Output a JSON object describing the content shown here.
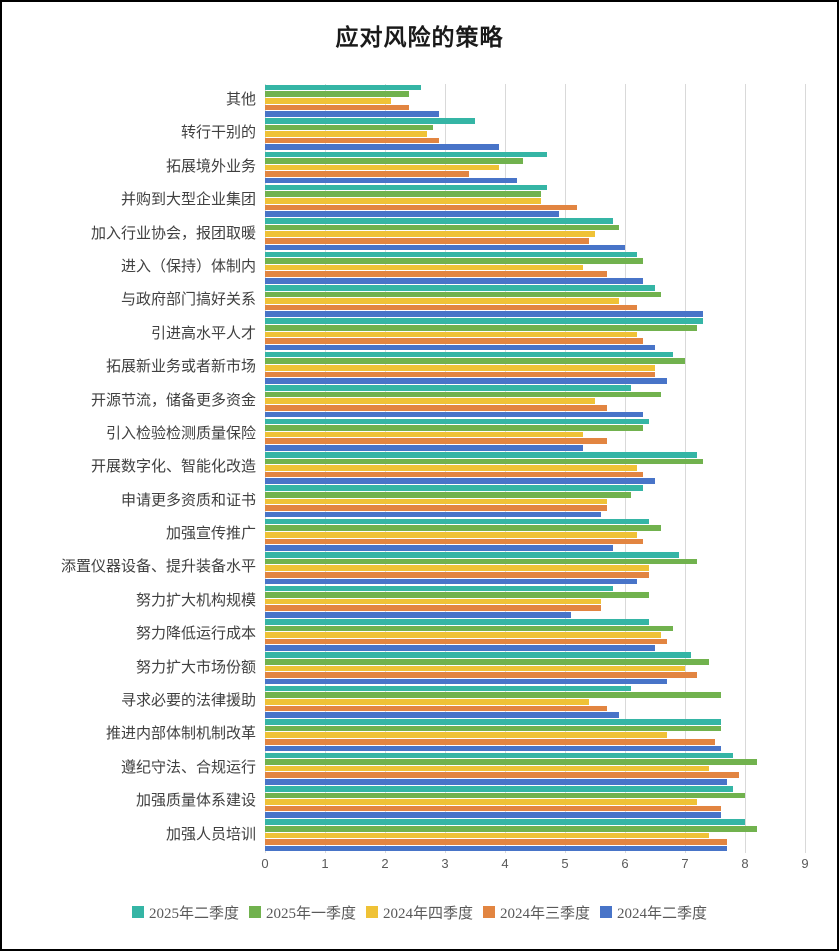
{
  "chart_data": {
    "type": "bar",
    "orientation": "horizontal",
    "title": "应对风险的策略",
    "xlabel": "",
    "ylabel": "",
    "x_axis": {
      "min": 0,
      "max": 9,
      "ticks": [
        0,
        1,
        2,
        3,
        4,
        5,
        6,
        7,
        8,
        9
      ]
    },
    "grid": true,
    "legend_position": "bottom",
    "categories": [
      "其他",
      "转行干别的",
      "拓展境外业务",
      "并购到大型企业集团",
      "加入行业协会，报团取暖",
      "进入（保持）体制内",
      "与政府部门搞好关系",
      "引进高水平人才",
      "拓展新业务或者新市场",
      "开源节流，储备更多资金",
      "引入检验检测质量保险",
      "开展数字化、智能化改造",
      "申请更多资质和证书",
      "加强宣传推广",
      "添置仪器设备、提升装备水平",
      "努力扩大机构规模",
      "努力降低运行成本",
      "努力扩大市场份额",
      "寻求必要的法律援助",
      "推进内部体制机制改革",
      "遵纪守法、合规运行",
      "加强质量体系建设",
      "加强人员培训"
    ],
    "series": [
      {
        "name": "2025年二季度",
        "color": "#35b5a5",
        "values": [
          2.6,
          3.5,
          4.7,
          4.7,
          5.8,
          6.2,
          6.5,
          7.3,
          6.8,
          6.1,
          6.4,
          7.2,
          6.3,
          6.4,
          6.9,
          5.8,
          6.4,
          7.1,
          6.1,
          7.6,
          7.8,
          7.8,
          8.0
        ]
      },
      {
        "name": "2025年一季度",
        "color": "#71b24e",
        "values": [
          2.4,
          2.8,
          4.3,
          4.6,
          5.9,
          6.3,
          6.6,
          7.2,
          7.0,
          6.6,
          6.3,
          7.3,
          6.1,
          6.6,
          7.2,
          6.4,
          6.8,
          7.4,
          7.6,
          7.6,
          8.2,
          8.0,
          8.2
        ]
      },
      {
        "name": "2024年四季度",
        "color": "#efc236",
        "values": [
          2.1,
          2.7,
          3.9,
          4.6,
          5.5,
          5.3,
          5.9,
          6.2,
          6.5,
          5.5,
          5.3,
          6.2,
          5.7,
          6.2,
          6.4,
          5.6,
          6.6,
          7.0,
          5.4,
          6.7,
          7.4,
          7.2,
          7.4
        ]
      },
      {
        "name": "2024年三季度",
        "color": "#e28541",
        "values": [
          2.4,
          2.9,
          3.4,
          5.2,
          5.4,
          5.7,
          6.2,
          6.3,
          6.5,
          5.7,
          5.7,
          6.3,
          5.7,
          6.3,
          6.4,
          5.6,
          6.7,
          7.2,
          5.7,
          7.5,
          7.9,
          7.6,
          7.7
        ]
      },
      {
        "name": "2024年二季度",
        "color": "#4874c8",
        "values": [
          2.9,
          3.9,
          4.2,
          4.9,
          6.0,
          6.3,
          7.3,
          6.5,
          6.7,
          6.3,
          5.3,
          6.5,
          5.6,
          5.8,
          6.2,
          5.1,
          6.5,
          6.7,
          5.9,
          7.6,
          7.7,
          7.6,
          7.7
        ]
      }
    ],
    "colors": {
      "gridline": "#d9d9d9",
      "axis_text": "#595959",
      "category_text": "#404040",
      "title_text": "#1a1a1a"
    }
  }
}
